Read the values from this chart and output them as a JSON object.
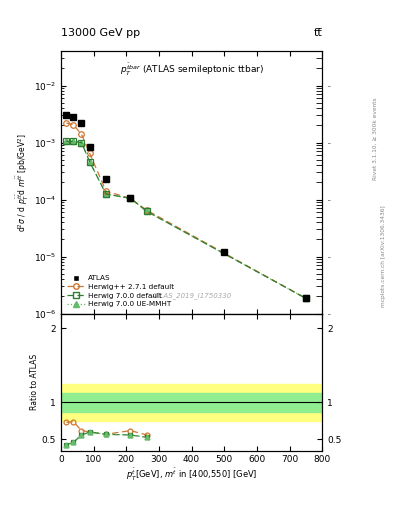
{
  "title_left": "13000 GeV pp",
  "title_right": "tt̅",
  "right_label_top": "Rivet 3.1.10, ≥ 300k events",
  "right_label_bottom": "mcplots.cern.ch [arXiv:1306.3436]",
  "watermark": "ATLAS_2019_I1750330",
  "atlas_x": [
    17,
    38,
    63,
    88,
    138,
    213,
    500,
    750
  ],
  "atlas_y": [
    0.0031,
    0.0028,
    0.0022,
    0.00085,
    0.00023,
    0.000105,
    1.2e-05,
    1.85e-06
  ],
  "herwig_pp_x": [
    17,
    38,
    63,
    88,
    138,
    213,
    263,
    750
  ],
  "herwig_pp_y": [
    0.0022,
    0.00205,
    0.0014,
    0.00065,
    0.00014,
    0.000105,
    6.5e-05,
    1.85e-06
  ],
  "herwig700_x": [
    17,
    38,
    63,
    88,
    138,
    213,
    263,
    750
  ],
  "herwig700_y": [
    0.00105,
    0.00105,
    0.001,
    0.00046,
    0.000125,
    0.000105,
    6.2e-05,
    1.85e-06
  ],
  "herwig700ue_x": [
    17,
    38,
    63,
    88,
    138,
    213,
    263,
    750
  ],
  "herwig700ue_y": [
    0.00105,
    0.00105,
    0.001,
    0.00046,
    0.000125,
    0.000105,
    6.2e-05,
    1.85e-06
  ],
  "ratio_herwig_pp_x": [
    17,
    38,
    63,
    138,
    213,
    263
  ],
  "ratio_herwig_pp_y": [
    0.73,
    0.74,
    0.62,
    0.57,
    0.62,
    0.56
  ],
  "ratio_herwig700_x": [
    17,
    38,
    63,
    88,
    138,
    213,
    263
  ],
  "ratio_herwig700_y": [
    0.43,
    0.46,
    0.56,
    0.6,
    0.57,
    0.56,
    0.53
  ],
  "ratio_herwig700ue_x": [
    17,
    38,
    63,
    88,
    138,
    213,
    263
  ],
  "ratio_herwig700ue_y": [
    0.43,
    0.46,
    0.56,
    0.6,
    0.57,
    0.56,
    0.53
  ],
  "band_yellow_low": 0.75,
  "band_yellow_high": 1.25,
  "band_green_low": 0.875,
  "band_green_high": 1.125,
  "herwig_pp_color": "#cc7733",
  "herwig700_color": "#2e7d32",
  "herwig700ue_color": "#66bb6a",
  "atlas_color": "black",
  "band_yellow_color": "#ffff80",
  "band_green_color": "#90ee90",
  "ylim_main": [
    1e-06,
    0.04
  ],
  "ylim_ratio": [
    0.35,
    2.2
  ],
  "xlim": [
    0,
    800
  ]
}
